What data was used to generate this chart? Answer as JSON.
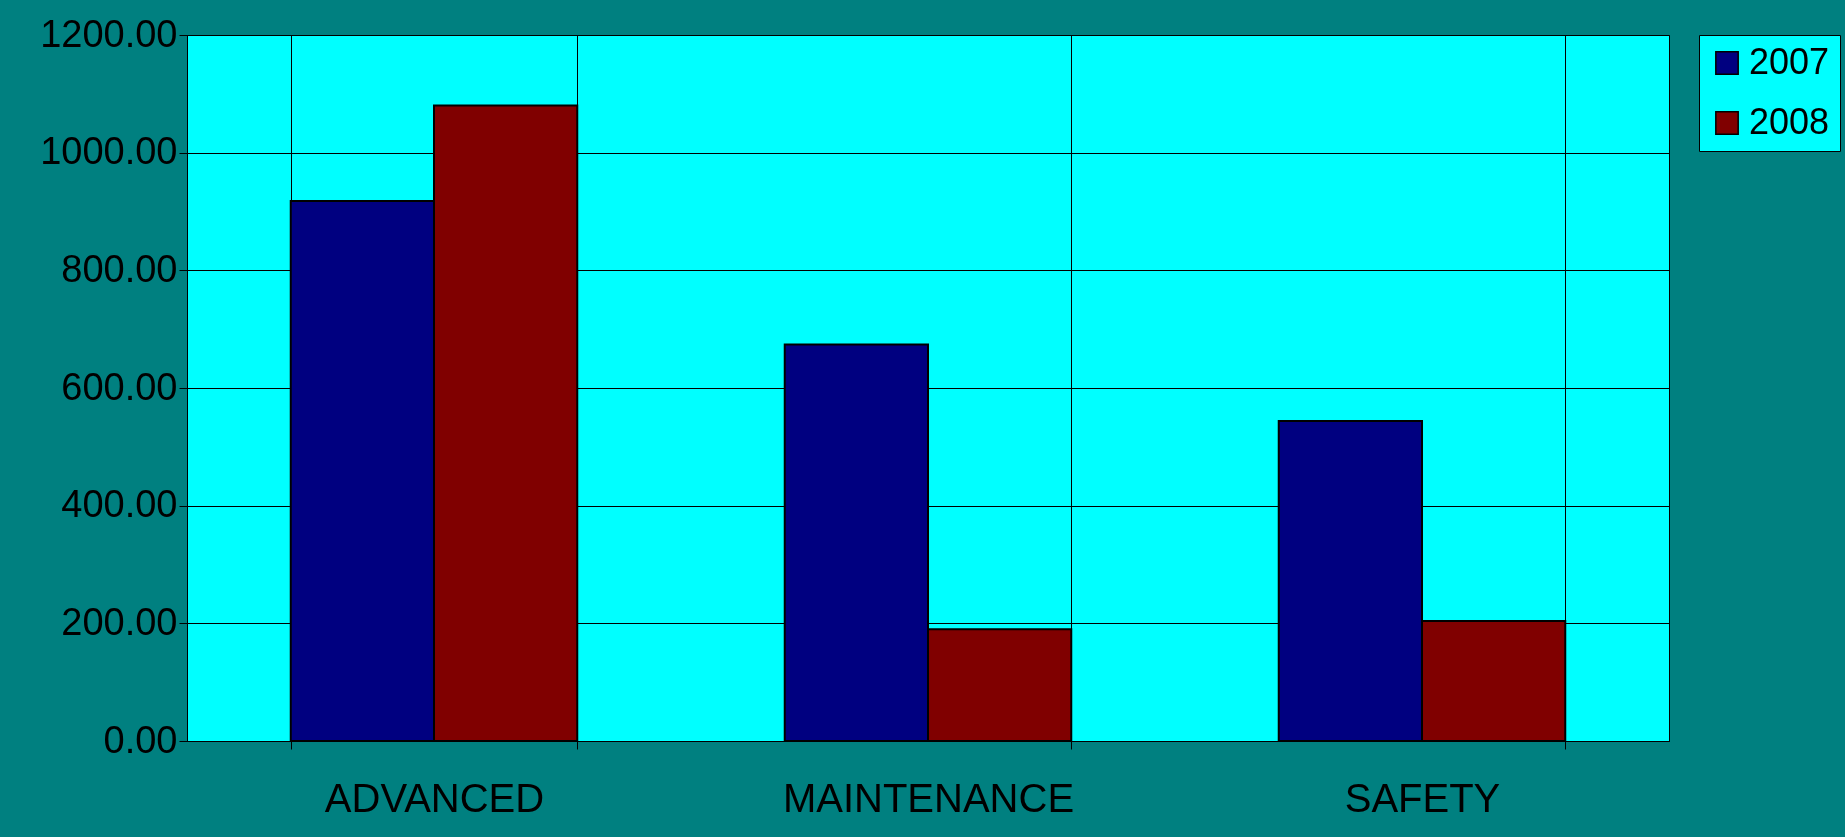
{
  "chart_data": {
    "type": "bar",
    "categories": [
      "ADVANCED",
      "MAINTENANCE",
      "SAFETY"
    ],
    "series": [
      {
        "name": "2007",
        "color": "#000080",
        "values": [
          918,
          674,
          544
        ]
      },
      {
        "name": "2008",
        "color": "#800000",
        "values": [
          1080,
          190,
          204
        ]
      }
    ],
    "ylim": [
      0,
      1200
    ],
    "yticks": [
      {
        "value": 0,
        "label": "0.00"
      },
      {
        "value": 200,
        "label": "200.00"
      },
      {
        "value": 400,
        "label": "400.00"
      },
      {
        "value": 600,
        "label": "600.00"
      },
      {
        "value": 800,
        "label": "800.00"
      },
      {
        "value": 1000,
        "label": "1000.00"
      },
      {
        "value": 1200,
        "label": "1200.00"
      }
    ],
    "grid": true,
    "legend": "right"
  }
}
